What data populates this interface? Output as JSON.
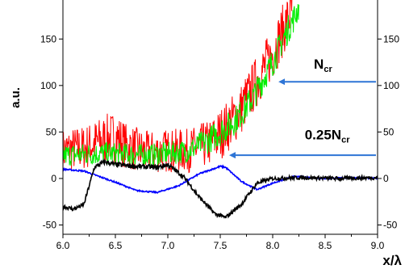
{
  "chart_data": {
    "type": "line",
    "xlabel": "x/λ",
    "ylabel": "a.u.",
    "xlim": [
      6.0,
      9.0
    ],
    "ylim": [
      -60,
      185
    ],
    "x_ticks": [
      "6.0",
      "6.5",
      "7.0",
      "7.5",
      "8.0",
      "8.5",
      "9.0"
    ],
    "x_tick_values": [
      6.0,
      6.5,
      7.0,
      7.5,
      8.0,
      8.5,
      9.0
    ],
    "y_ticks_left": [
      "-50",
      "0",
      "50",
      "100",
      "150"
    ],
    "y_ticks_right": [
      "-50",
      "0",
      "50",
      "100",
      "150"
    ],
    "y_tick_values": [
      -50,
      0,
      50,
      100,
      150
    ],
    "grid": false,
    "series": [
      {
        "color": "#ff0000",
        "noise": 22,
        "x": [
          6.0,
          6.2,
          6.4,
          6.5,
          6.6,
          6.8,
          7.0,
          7.2,
          7.4,
          7.5,
          7.6,
          7.7,
          7.8,
          7.9,
          8.0,
          8.1,
          8.2
        ],
        "y": [
          30,
          33,
          42,
          45,
          35,
          28,
          30,
          30,
          38,
          48,
          60,
          75,
          95,
          115,
          135,
          160,
          185
        ]
      },
      {
        "color": "#00ee00",
        "noise": 12,
        "x": [
          6.0,
          6.2,
          6.4,
          6.6,
          6.8,
          7.0,
          7.2,
          7.4,
          7.5,
          7.6,
          7.7,
          7.8,
          7.9,
          8.0,
          8.1,
          8.2,
          8.25
        ],
        "y": [
          25,
          26,
          27,
          26,
          25,
          27,
          30,
          42,
          50,
          58,
          70,
          85,
          105,
          125,
          150,
          172,
          185
        ]
      },
      {
        "color": "#0000ff",
        "noise": 1,
        "x": [
          6.0,
          6.2,
          6.3,
          6.5,
          6.7,
          6.9,
          7.1,
          7.3,
          7.5,
          7.55,
          7.7,
          7.85,
          8.0,
          8.2,
          8.5,
          8.8,
          9.0
        ],
        "y": [
          10,
          8,
          4,
          -4,
          -13,
          -15,
          -8,
          5,
          13,
          12,
          -3,
          -12,
          -5,
          2,
          0,
          1,
          0
        ]
      },
      {
        "color": "#000000",
        "noise": 3,
        "x": [
          6.0,
          6.1,
          6.2,
          6.3,
          6.4,
          6.5,
          6.7,
          6.9,
          7.0,
          7.15,
          7.3,
          7.45,
          7.55,
          7.7,
          7.85,
          8.0,
          8.3,
          8.6,
          9.0
        ],
        "y": [
          -30,
          -33,
          -28,
          12,
          18,
          15,
          13,
          12,
          15,
          2,
          -20,
          -38,
          -42,
          -28,
          -5,
          0,
          1,
          0,
          1
        ]
      }
    ],
    "annotations": [
      {
        "label": "N",
        "sub": "cr",
        "target_x": 8.07,
        "target_y": 104,
        "label_x": 8.48,
        "label_y": 118
      },
      {
        "label": "0.25N",
        "sub": "cr",
        "target_x": 7.6,
        "target_y": 25,
        "label_x": 8.52,
        "label_y": 42
      }
    ],
    "arrow_color": "#2e75d6"
  }
}
